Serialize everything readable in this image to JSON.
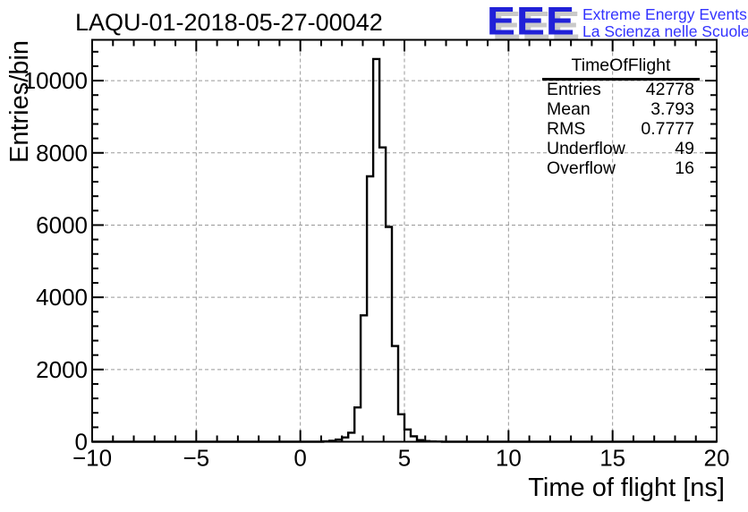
{
  "header": {
    "title": "LAQU-01-2018-05-27-00042"
  },
  "logo": {
    "acronym": "EEE",
    "line1": "Extreme Energy Events",
    "line2": "La Scienza nelle Scuole"
  },
  "stats": {
    "title": "TimeOfFlight",
    "rows": [
      {
        "label": "Entries",
        "value": "42778"
      },
      {
        "label": "Mean",
        "value": "3.793"
      },
      {
        "label": "RMS",
        "value": "0.7777"
      },
      {
        "label": "Underflow",
        "value": "49"
      },
      {
        "label": "Overflow",
        "value": "16"
      }
    ]
  },
  "colors": {
    "histogram_line": "#000000",
    "frame": "#000000",
    "gridline": "#999999",
    "logo_blue": "#2020d8",
    "logo_text_blue": "#3333ff",
    "logo_shadow_gray": "#c9c9c9",
    "background": "#ffffff"
  },
  "chart_data": {
    "type": "bar",
    "subtype": "step-histogram",
    "title": "LAQU-01-2018-05-27-00042",
    "xlabel": "Time of flight [ns]",
    "ylabel": "Entries/bin",
    "xlim": [
      -10,
      20
    ],
    "ylim": [
      0,
      11130
    ],
    "grid": true,
    "grid_style": "dashed",
    "legend_position": "none",
    "xticks": {
      "major": [
        -10,
        -5,
        0,
        5,
        10,
        15,
        20
      ],
      "labels": [
        "−10",
        "−5",
        "0",
        "5",
        "10",
        "15",
        "20"
      ],
      "minor_step": 1
    },
    "yticks": {
      "major": [
        0,
        2000,
        4000,
        6000,
        8000,
        10000
      ],
      "labels": [
        "0",
        "2000",
        "4000",
        "6000",
        "8000",
        "10000"
      ],
      "minor_step": 400
    },
    "bins": {
      "first_edge": 1.1,
      "bin_width": 0.3,
      "values": [
        10,
        25,
        60,
        120,
        250,
        950,
        3500,
        7350,
        10600,
        8150,
        5950,
        2650,
        760,
        340,
        150,
        45,
        18,
        8,
        4
      ]
    },
    "peak": {
      "bin_range_ns": [
        3.5,
        3.8
      ],
      "value": 10600
    }
  }
}
